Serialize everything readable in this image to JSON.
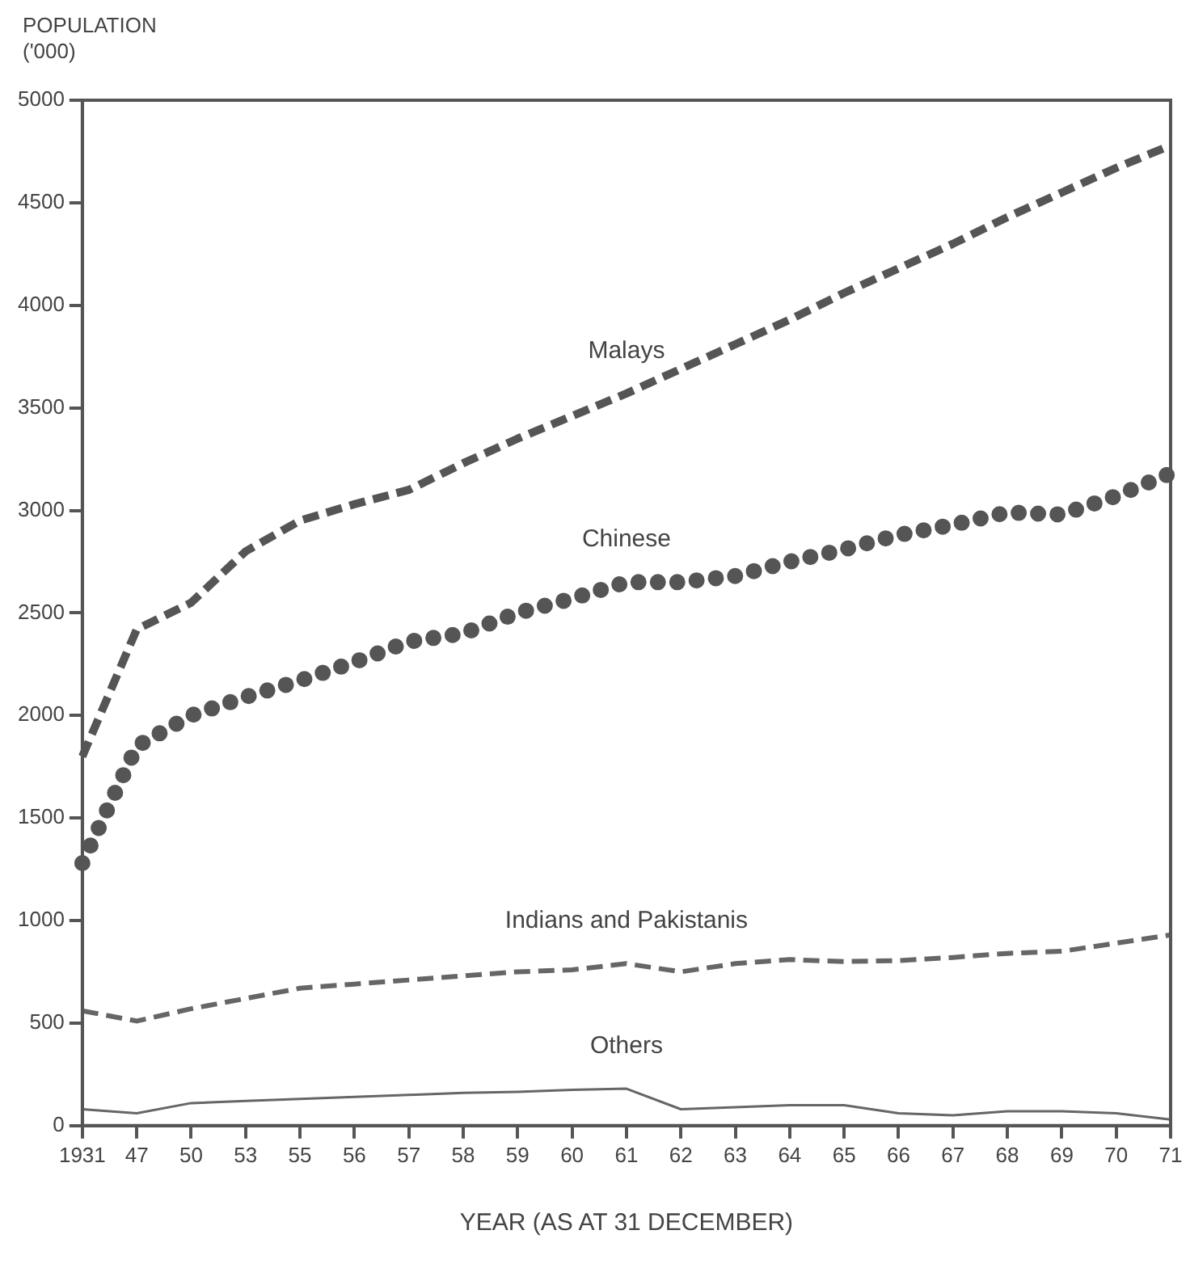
{
  "chart_data": {
    "type": "line",
    "xlabel": "YEAR (AS AT 31 DECEMBER)",
    "ylabel": "POPULATION ('000)",
    "categories": [
      "1931",
      "47",
      "50",
      "53",
      "55",
      "56",
      "57",
      "58",
      "59",
      "60",
      "61",
      "62",
      "63",
      "64",
      "65",
      "66",
      "67",
      "68",
      "69",
      "70",
      "71"
    ],
    "series": [
      {
        "name": "Malays",
        "color": "#555555",
        "line_style": "dashed",
        "values": [
          1800,
          2420,
          2550,
          2800,
          2950,
          3030,
          3100,
          3230,
          3350,
          3460,
          3570,
          3690,
          3810,
          3930,
          4060,
          4180,
          4300,
          4430,
          4550,
          4670,
          4780
        ]
      },
      {
        "name": "Chinese",
        "color": "#555555",
        "line_style": "dotted",
        "values": [
          1280,
          1850,
          2000,
          2090,
          2170,
          2260,
          2360,
          2400,
          2500,
          2570,
          2650,
          2650,
          2680,
          2750,
          2810,
          2880,
          2930,
          2990,
          2980,
          3070,
          3180
        ]
      },
      {
        "name": "Indians and Pakistanis",
        "color": "#666666",
        "line_style": "dashed",
        "values": [
          560,
          510,
          570,
          620,
          670,
          690,
          710,
          730,
          750,
          760,
          790,
          750,
          790,
          810,
          800,
          805,
          820,
          840,
          850,
          890,
          930
        ]
      },
      {
        "name": "Others",
        "color": "#666666",
        "line_style": "solid",
        "values": [
          80,
          60,
          110,
          120,
          130,
          140,
          150,
          160,
          165,
          175,
          180,
          80,
          90,
          100,
          100,
          60,
          50,
          70,
          70,
          60,
          30
        ]
      }
    ],
    "ylim": [
      0,
      5000
    ],
    "yticks": [
      0,
      500,
      1000,
      1500,
      2000,
      2500,
      3000,
      3500,
      4000,
      4500,
      5000
    ],
    "grid": false,
    "legend": false,
    "marker": "none"
  }
}
